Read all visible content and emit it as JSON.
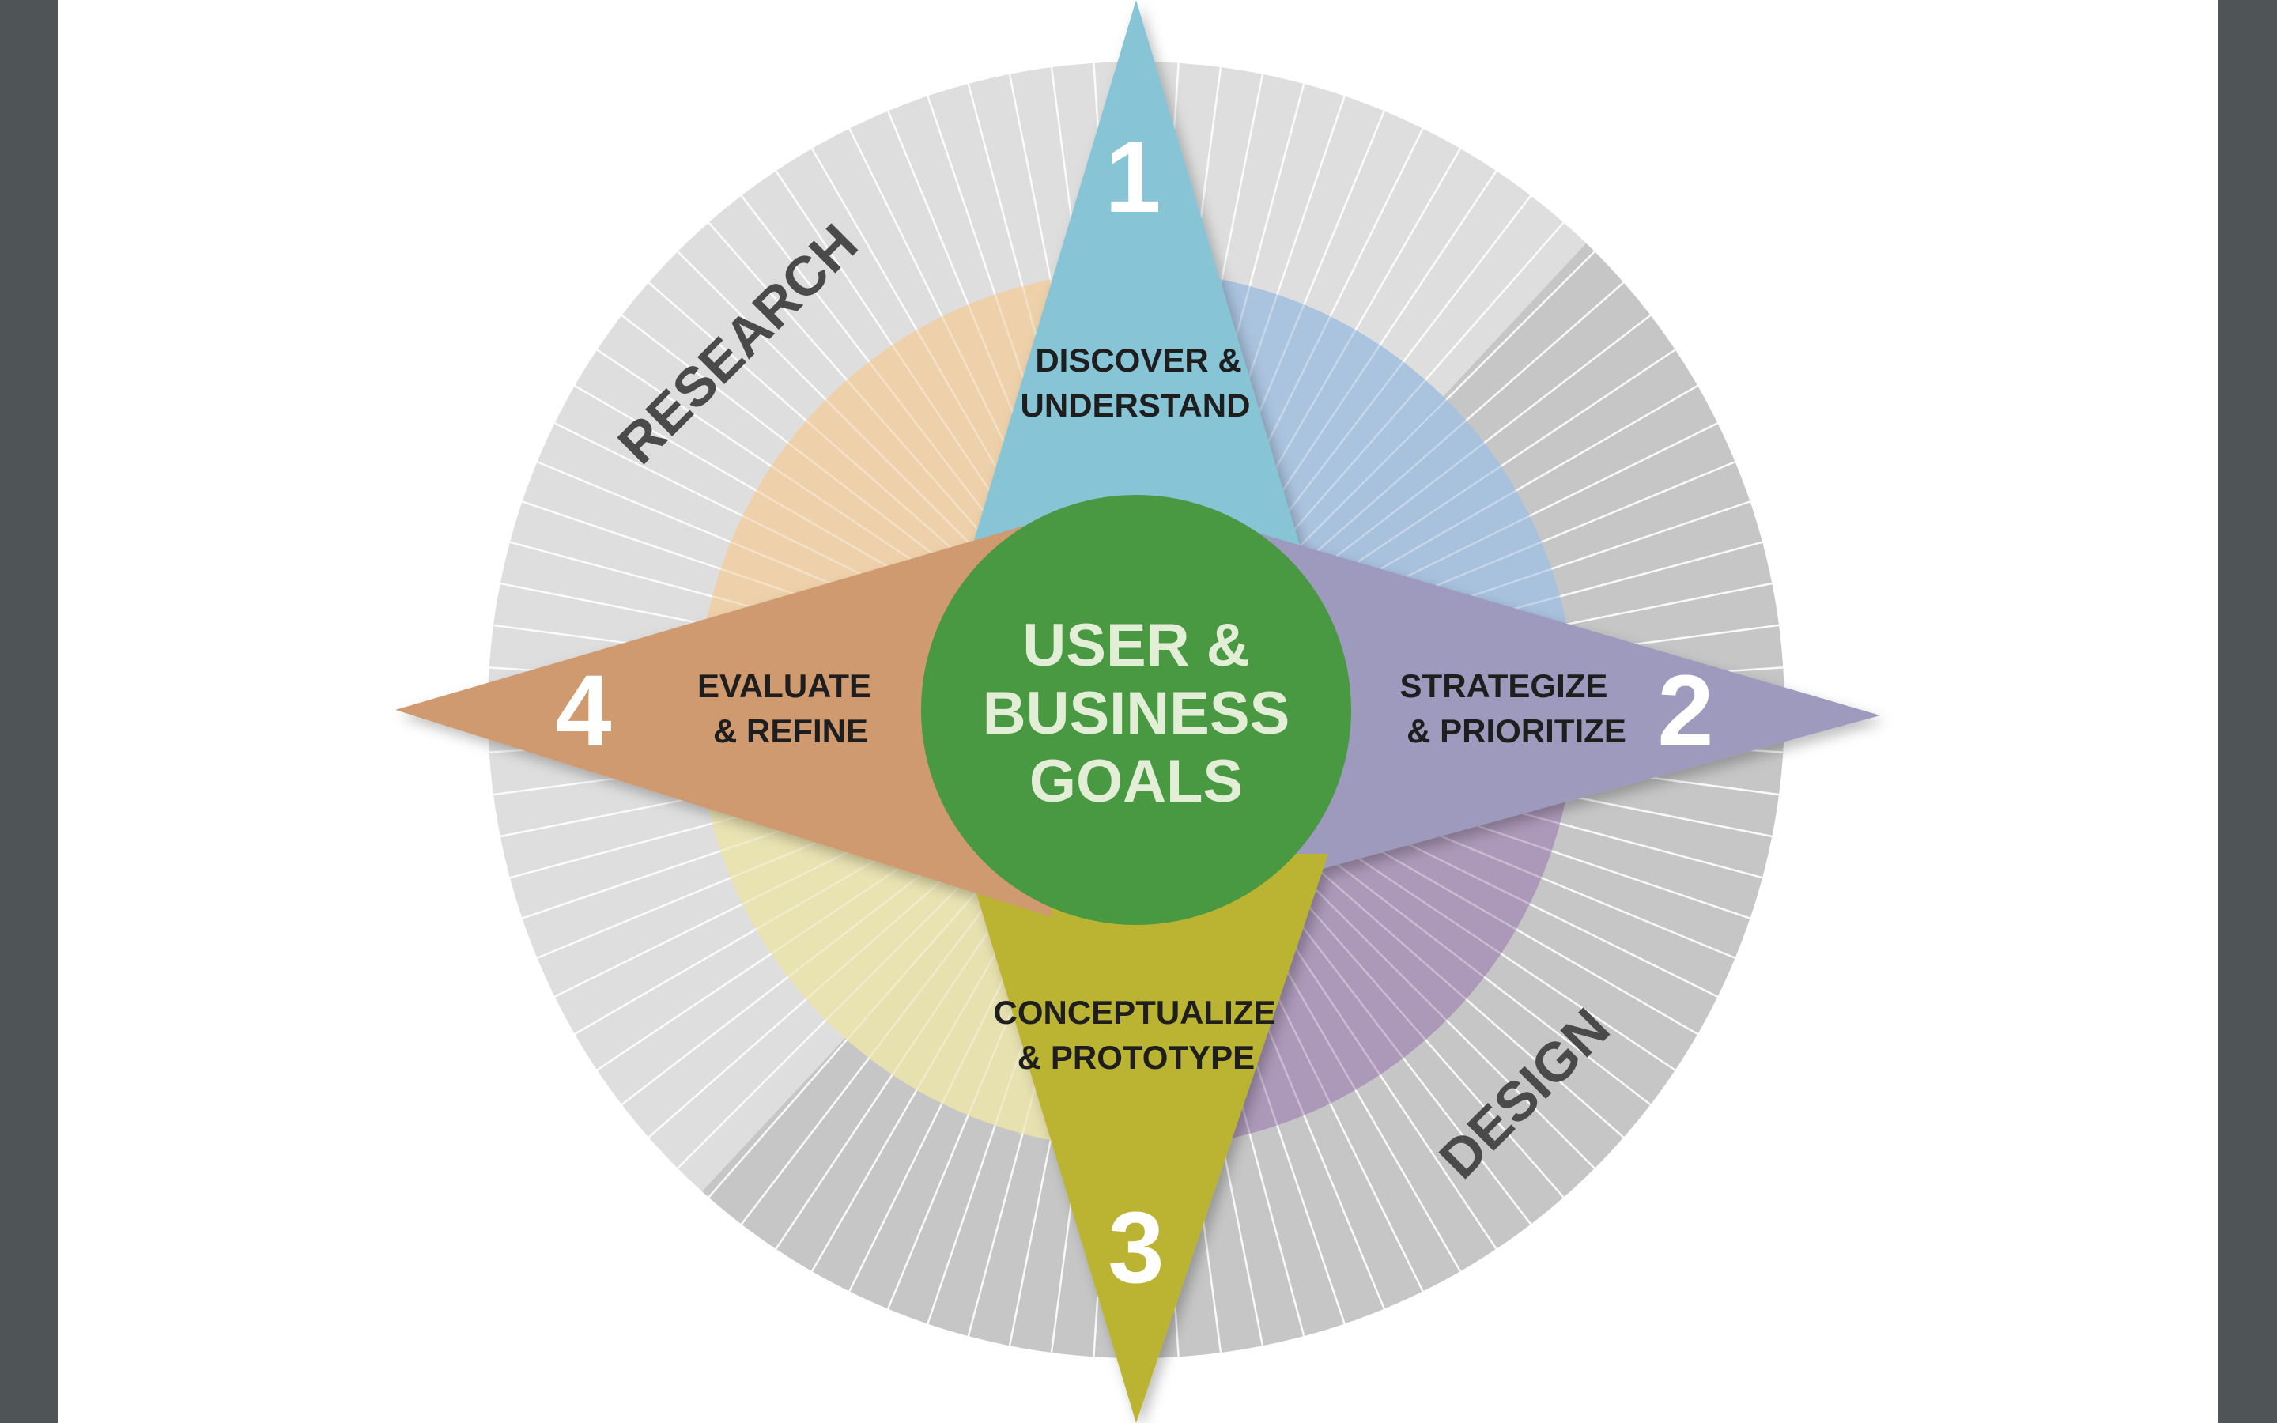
{
  "diagram": {
    "center": {
      "line1": "USER &",
      "line2": "BUSINESS",
      "line3": "GOALS"
    },
    "arcs": {
      "research": "RESEARCH",
      "design": "DESIGN"
    },
    "steps": [
      {
        "number": "1",
        "line1": "DISCOVER &",
        "line2": "UNDERSTAND"
      },
      {
        "number": "2",
        "line1": "STRATEGIZE",
        "line2": "& PRIORITIZE"
      },
      {
        "number": "3",
        "line1": "CONCEPTUALIZE",
        "line2": "& PROTOTYPE"
      },
      {
        "number": "4",
        "line1": "EVALUATE",
        "line2": "& REFINE"
      }
    ],
    "colors": {
      "frame": "#4f5457",
      "page": "#ffffff",
      "outer_ring": "#dedede",
      "outer_ring_dark": "#c4c4c4",
      "step1": "#86c4d6",
      "step2": "#9d9abd",
      "step3": "#bbb432",
      "step4": "#cf9a6f",
      "center": "#4a9843",
      "center_text": "#e3eed6",
      "step_text": "#1e1e1e",
      "number_text": "#ffffff",
      "arc_text": "#4a4a4a"
    }
  }
}
